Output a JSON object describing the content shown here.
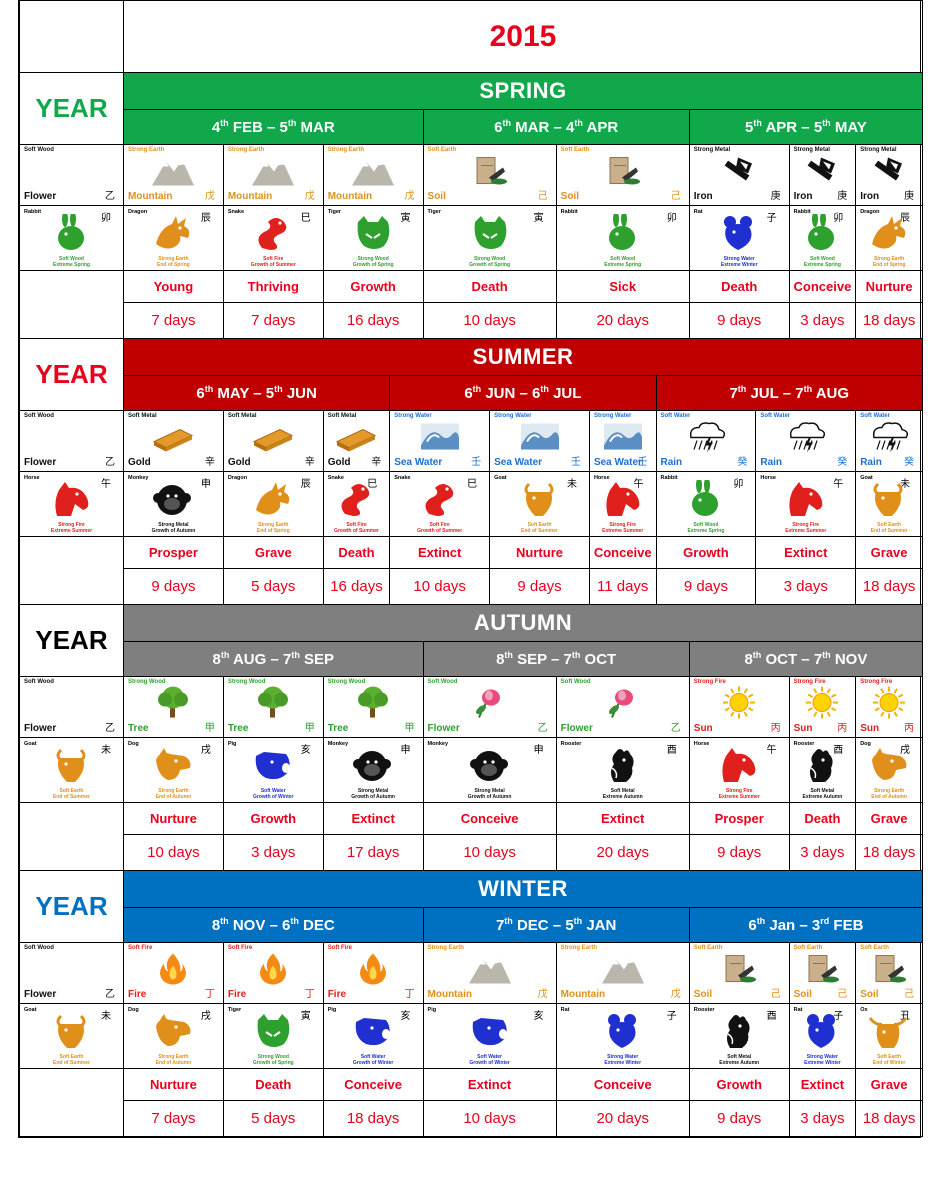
{
  "title": "2015",
  "year_label": "YEAR",
  "year_element": {
    "top": "Soft Wood",
    "name": "Flower",
    "cjk": "乙"
  },
  "seasons": [
    {
      "name": "SPRING",
      "color": "#10a84a",
      "year_color": "#10a84a",
      "year_animal": {
        "name": "Rabbit",
        "cjk": "卯",
        "kind": "rabbit"
      },
      "ranges": [
        {
          "d1": "4",
          "s1": "th",
          "m1": "FEB",
          "d2": "5",
          "s2": "th",
          "m2": "MAR"
        },
        {
          "d1": "6",
          "s1": "th",
          "m1": "MAR",
          "d2": "4",
          "s2": "th",
          "m2": "APR"
        },
        {
          "d1": "5",
          "s1": "th",
          "m1": "APR",
          "d2": "5",
          "s2": "th",
          "m2": "MAY"
        }
      ],
      "elements": [
        {
          "top": "Strong Earth",
          "name": "Mountain",
          "cjk": "戊",
          "kind": "mountain"
        },
        {
          "top": "Strong Earth",
          "name": "Mountain",
          "cjk": "戊",
          "kind": "mountain"
        },
        {
          "top": "Strong Earth",
          "name": "Mountain",
          "cjk": "戊",
          "kind": "mountain"
        },
        {
          "top": "Soft Earth",
          "name": "Soil",
          "cjk": "己",
          "kind": "soil"
        },
        {
          "top": "Soft Earth",
          "name": "Soil",
          "cjk": "己",
          "kind": "soil"
        },
        {
          "top": "Strong Metal",
          "name": "Iron",
          "cjk": "庚",
          "kind": "iron"
        },
        {
          "top": "Strong Metal",
          "name": "Iron",
          "cjk": "庚",
          "kind": "iron"
        },
        {
          "top": "Strong Metal",
          "name": "Iron",
          "cjk": "庚",
          "kind": "iron"
        }
      ],
      "animals": [
        {
          "name": "Dragon",
          "cjk": "辰",
          "kind": "dragon"
        },
        {
          "name": "Snake",
          "cjk": "巳",
          "kind": "snake"
        },
        {
          "name": "Tiger",
          "cjk": "寅",
          "kind": "tiger"
        },
        {
          "name": "Tiger",
          "cjk": "寅",
          "kind": "tiger"
        },
        {
          "name": "Rabbit",
          "cjk": "卯",
          "kind": "rabbit"
        },
        {
          "name": "Rat",
          "cjk": "子",
          "kind": "rat"
        },
        {
          "name": "Rabbit",
          "cjk": "卯",
          "kind": "rabbit"
        },
        {
          "name": "Dragon",
          "cjk": "辰",
          "kind": "dragon"
        }
      ],
      "statuses": [
        "Young",
        "Thriving",
        "Growth",
        "Death",
        "Sick",
        "Death",
        "Conceive",
        "Nurture"
      ],
      "days": [
        "7 days",
        "7 days",
        "16 days",
        "10 days",
        "20 days",
        "9 days",
        "3 days",
        "18 days"
      ]
    },
    {
      "name": "SUMMER",
      "color": "#c00000",
      "year_color": "#e8001c",
      "year_animal": {
        "name": "Horse",
        "cjk": "午",
        "kind": "horse"
      },
      "ranges": [
        {
          "d1": "6",
          "s1": "th",
          "m1": "MAY",
          "d2": "5",
          "s2": "th",
          "m2": "JUN"
        },
        {
          "d1": "6",
          "s1": "th",
          "m1": "JUN",
          "d2": "6",
          "s2": "th",
          "m2": "JUL"
        },
        {
          "d1": "7",
          "s1": "th",
          "m1": "JUL",
          "d2": "7",
          "s2": "th",
          "m2": "AUG"
        }
      ],
      "elements": [
        {
          "top": "Soft Metal",
          "name": "Gold",
          "cjk": "辛",
          "kind": "gold"
        },
        {
          "top": "Soft Metal",
          "name": "Gold",
          "cjk": "辛",
          "kind": "gold"
        },
        {
          "top": "Soft Metal",
          "name": "Gold",
          "cjk": "辛",
          "kind": "gold"
        },
        {
          "top": "Strong Water",
          "name": "Sea Water",
          "cjk": "壬",
          "kind": "wave"
        },
        {
          "top": "Strong Water",
          "name": "Sea Water",
          "cjk": "壬",
          "kind": "wave"
        },
        {
          "top": "Strong Water",
          "name": "Sea Water",
          "cjk": "壬",
          "kind": "wave"
        },
        {
          "top": "Soft Water",
          "name": "Rain",
          "cjk": "癸",
          "kind": "rain"
        },
        {
          "top": "Soft Water",
          "name": "Rain",
          "cjk": "癸",
          "kind": "rain"
        },
        {
          "top": "Soft Water",
          "name": "Rain",
          "cjk": "癸",
          "kind": "rain"
        }
      ],
      "animals": [
        {
          "name": "Monkey",
          "cjk": "申",
          "kind": "monkey"
        },
        {
          "name": "Dragon",
          "cjk": "辰",
          "kind": "dragon"
        },
        {
          "name": "Snake",
          "cjk": "巳",
          "kind": "snake"
        },
        {
          "name": "Snake",
          "cjk": "巳",
          "kind": "snake"
        },
        {
          "name": "Goat",
          "cjk": "未",
          "kind": "goat"
        },
        {
          "name": "Horse",
          "cjk": "午",
          "kind": "horse"
        },
        {
          "name": "Rabbit",
          "cjk": "卯",
          "kind": "rabbit"
        },
        {
          "name": "Horse",
          "cjk": "午",
          "kind": "horse"
        },
        {
          "name": "Goat",
          "cjk": "未",
          "kind": "goat"
        }
      ],
      "statuses": [
        "Prosper",
        "Grave",
        "Death",
        "Extinct",
        "Nurture",
        "Conceive",
        "Growth",
        "Extinct",
        "Grave"
      ],
      "days": [
        "9 days",
        "5 days",
        "16 days",
        "10 days",
        "9 days",
        "11 days",
        "9 days",
        "3 days",
        "18 days"
      ]
    },
    {
      "name": "AUTUMN",
      "color": "#7f7f7f",
      "year_color": "#000000",
      "year_animal": {
        "name": "Goat",
        "cjk": "未",
        "kind": "goat"
      },
      "ranges": [
        {
          "d1": "8",
          "s1": "th",
          "m1": "AUG",
          "d2": "7",
          "s2": "th",
          "m2": "SEP"
        },
        {
          "d1": "8",
          "s1": "th",
          "m1": "SEP",
          "d2": "7",
          "s2": "th",
          "m2": "OCT"
        },
        {
          "d1": "8",
          "s1": "th",
          "m1": "OCT",
          "d2": "7",
          "s2": "th",
          "m2": "NOV"
        }
      ],
      "elements": [
        {
          "top": "Strong Wood",
          "name": "Tree",
          "cjk": "甲",
          "kind": "tree"
        },
        {
          "top": "Strong Wood",
          "name": "Tree",
          "cjk": "甲",
          "kind": "tree"
        },
        {
          "top": "Strong Wood",
          "name": "Tree",
          "cjk": "甲",
          "kind": "tree"
        },
        {
          "top": "Soft Wood",
          "name": "Flower",
          "cjk": "乙",
          "kind": "flower"
        },
        {
          "top": "Soft Wood",
          "name": "Flower",
          "cjk": "乙",
          "kind": "flower"
        },
        {
          "top": "Strong Fire",
          "name": "Sun",
          "cjk": "丙",
          "kind": "sun"
        },
        {
          "top": "Strong Fire",
          "name": "Sun",
          "cjk": "丙",
          "kind": "sun"
        },
        {
          "top": "Strong Fire",
          "name": "Sun",
          "cjk": "丙",
          "kind": "sun"
        }
      ],
      "animals": [
        {
          "name": "Dog",
          "cjk": "戌",
          "kind": "dog"
        },
        {
          "name": "Pig",
          "cjk": "亥",
          "kind": "pig"
        },
        {
          "name": "Monkey",
          "cjk": "申",
          "kind": "monkey"
        },
        {
          "name": "Monkey",
          "cjk": "申",
          "kind": "monkey"
        },
        {
          "name": "Rooster",
          "cjk": "酉",
          "kind": "rooster"
        },
        {
          "name": "Horse",
          "cjk": "午",
          "kind": "horse"
        },
        {
          "name": "Rooster",
          "cjk": "酉",
          "kind": "rooster"
        },
        {
          "name": "Dog",
          "cjk": "戌",
          "kind": "dog"
        }
      ],
      "statuses": [
        "Nurture",
        "Growth",
        "Extinct",
        "Conceive",
        "Extinct",
        "Prosper",
        "Death",
        "Grave"
      ],
      "days": [
        "10 days",
        "3 days",
        "17 days",
        "10 days",
        "20 days",
        "9 days",
        "3 days",
        "18 days"
      ]
    },
    {
      "name": "WINTER",
      "color": "#0070c0",
      "year_color": "#0070c0",
      "year_animal": {
        "name": "Goat",
        "cjk": "未",
        "kind": "goat"
      },
      "ranges": [
        {
          "d1": "8",
          "s1": "th",
          "m1": "NOV",
          "d2": "6",
          "s2": "th",
          "m2": "DEC"
        },
        {
          "d1": "7",
          "s1": "th",
          "m1": "DEC",
          "d2": "5",
          "s2": "th",
          "m2": "JAN"
        },
        {
          "d1": "6",
          "s1": "th",
          "m1": "Jan",
          "d2": "3",
          "s2": "rd",
          "m2": "FEB"
        }
      ],
      "elements": [
        {
          "top": "Soft Fire",
          "name": "Fire",
          "cjk": "丁",
          "kind": "fire"
        },
        {
          "top": "Soft Fire",
          "name": "Fire",
          "cjk": "丁",
          "kind": "fire"
        },
        {
          "top": "Soft Fire",
          "name": "Fire",
          "cjk": "丁",
          "kind": "fire"
        },
        {
          "top": "Strong Earth",
          "name": "Mountain",
          "cjk": "戊",
          "kind": "mountain"
        },
        {
          "top": "Strong Earth",
          "name": "Mountain",
          "cjk": "戊",
          "kind": "mountain"
        },
        {
          "top": "Soft Earth",
          "name": "Soil",
          "cjk": "己",
          "kind": "soil"
        },
        {
          "top": "Soft Earth",
          "name": "Soil",
          "cjk": "己",
          "kind": "soil"
        },
        {
          "top": "Soft Earth",
          "name": "Soil",
          "cjk": "己",
          "kind": "soil"
        }
      ],
      "animals": [
        {
          "name": "Dog",
          "cjk": "戌",
          "kind": "dog"
        },
        {
          "name": "Tiger",
          "cjk": "寅",
          "kind": "tiger"
        },
        {
          "name": "Pig",
          "cjk": "亥",
          "kind": "pig"
        },
        {
          "name": "Pig",
          "cjk": "亥",
          "kind": "pig"
        },
        {
          "name": "Rat",
          "cjk": "子",
          "kind": "rat"
        },
        {
          "name": "Rooster",
          "cjk": "酉",
          "kind": "rooster"
        },
        {
          "name": "Rat",
          "cjk": "子",
          "kind": "rat"
        },
        {
          "name": "Ox",
          "cjk": "丑",
          "kind": "ox"
        }
      ],
      "statuses": [
        "Nurture",
        "Death",
        "Conceive",
        "Extinct",
        "Conceive",
        "Growth",
        "Extinct",
        "Grave"
      ],
      "days": [
        "7 days",
        "5 days",
        "18 days",
        "10 days",
        "20 days",
        "9 days",
        "3 days",
        "18 days"
      ]
    }
  ],
  "animal_meta": {
    "rabbit": {
      "desc1": "Soft Wood",
      "desc2": "Extreme Spring",
      "color": "#2ea02e"
    },
    "dragon": {
      "desc1": "Strong Earth",
      "desc2": "End of Spring",
      "color": "#e0901a"
    },
    "snake": {
      "desc1": "Soft Fire",
      "desc2": "Growth of Summer",
      "color": "#e0201c"
    },
    "tiger": {
      "desc1": "Strong Wood",
      "desc2": "Growth of Spring",
      "color": "#2ea02e"
    },
    "rat": {
      "desc1": "Strong Water",
      "desc2": "Extreme Winter",
      "color": "#1f2fd0"
    },
    "horse": {
      "desc1": "Strong Fire",
      "desc2": "Extreme Summer",
      "color": "#e0201c"
    },
    "monkey": {
      "desc1": "Strong Metal",
      "desc2": "Growth of Autumn",
      "color": "#111111"
    },
    "goat": {
      "desc1": "Soft Earth",
      "desc2": "End of Summer",
      "color": "#e0901a"
    },
    "dog": {
      "desc1": "Strong Earth",
      "desc2": "End of Autumn",
      "color": "#e0901a"
    },
    "pig": {
      "desc1": "Soft Water",
      "desc2": "Growth of Winter",
      "color": "#1f2fd0"
    },
    "rooster": {
      "desc1": "Soft Metal",
      "desc2": "Extreme Autumn",
      "color": "#111111"
    },
    "ox": {
      "desc1": "Soft Earth",
      "desc2": "End of Winter",
      "color": "#e0901a"
    }
  },
  "element_colors": {
    "mountain": "#e0901a",
    "soil": "#e0901a",
    "iron": "#111111",
    "gold": "#111111",
    "wave": "#1f6fd0",
    "rain": "#1f6fd0",
    "tree": "#2ea02e",
    "flower": "#2ea02e",
    "sun": "#e0201c",
    "fire": "#e0201c"
  },
  "title_color": "#e8001c"
}
